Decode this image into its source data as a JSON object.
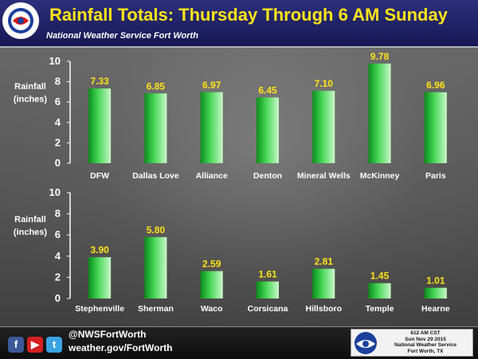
{
  "header": {
    "title": "Rainfall Totals:  Thursday Through 6 AM Sunday",
    "subtitle": "National Weather Service Fort Worth"
  },
  "colors": {
    "title": "#ffe419",
    "header_bg": "#1e206a",
    "bar_top": "#b9f2b9",
    "bar_bottom": "#0a9a1a",
    "value_label": "#ffe419",
    "axis_text": "#ffffff"
  },
  "chart_data": [
    {
      "type": "bar",
      "title": "",
      "xlabel": "",
      "ylabel": "Rainfall (inches)",
      "ylabel_lines": [
        "Rainfall",
        "(inches)"
      ],
      "ylim": [
        0,
        10
      ],
      "yticks": [
        0,
        2,
        4,
        6,
        8,
        10
      ],
      "grid": false,
      "categories": [
        "DFW",
        "Dallas Love",
        "Alliance",
        "Denton",
        "Mineral Wells",
        "McKinney",
        "Paris"
      ],
      "values": [
        7.33,
        6.85,
        6.97,
        6.45,
        7.1,
        9.78,
        6.96
      ],
      "value_labels": [
        "7.33",
        "6.85",
        "6.97",
        "6.45",
        "7.10",
        "9.78",
        "6.96"
      ]
    },
    {
      "type": "bar",
      "title": "",
      "xlabel": "",
      "ylabel": "Rainfall (inches)",
      "ylabel_lines": [
        "Rainfall",
        "(inches)"
      ],
      "ylim": [
        0,
        10
      ],
      "yticks": [
        0,
        2,
        4,
        6,
        8,
        10
      ],
      "grid": false,
      "categories": [
        "Stephenville",
        "Sherman",
        "Waco",
        "Corsicana",
        "Hillsboro",
        "Temple",
        "Hearne"
      ],
      "values": [
        3.9,
        5.8,
        2.59,
        1.61,
        2.81,
        1.45,
        1.01
      ],
      "value_labels": [
        "3.90",
        "5.80",
        "2.59",
        "1.61",
        "2.81",
        "1.45",
        "1.01"
      ]
    }
  ],
  "footer": {
    "social_icons": [
      "facebook-icon",
      "youtube-icon",
      "twitter-icon"
    ],
    "handle": "@NWSFortWorth",
    "website": "weather.gov/FortWorth",
    "stamp_time": "612 AM CST",
    "stamp_date": "Sun Nov 29 2015",
    "stamp_office": "National Weather Service",
    "stamp_location": "Fort Worth, TX"
  }
}
